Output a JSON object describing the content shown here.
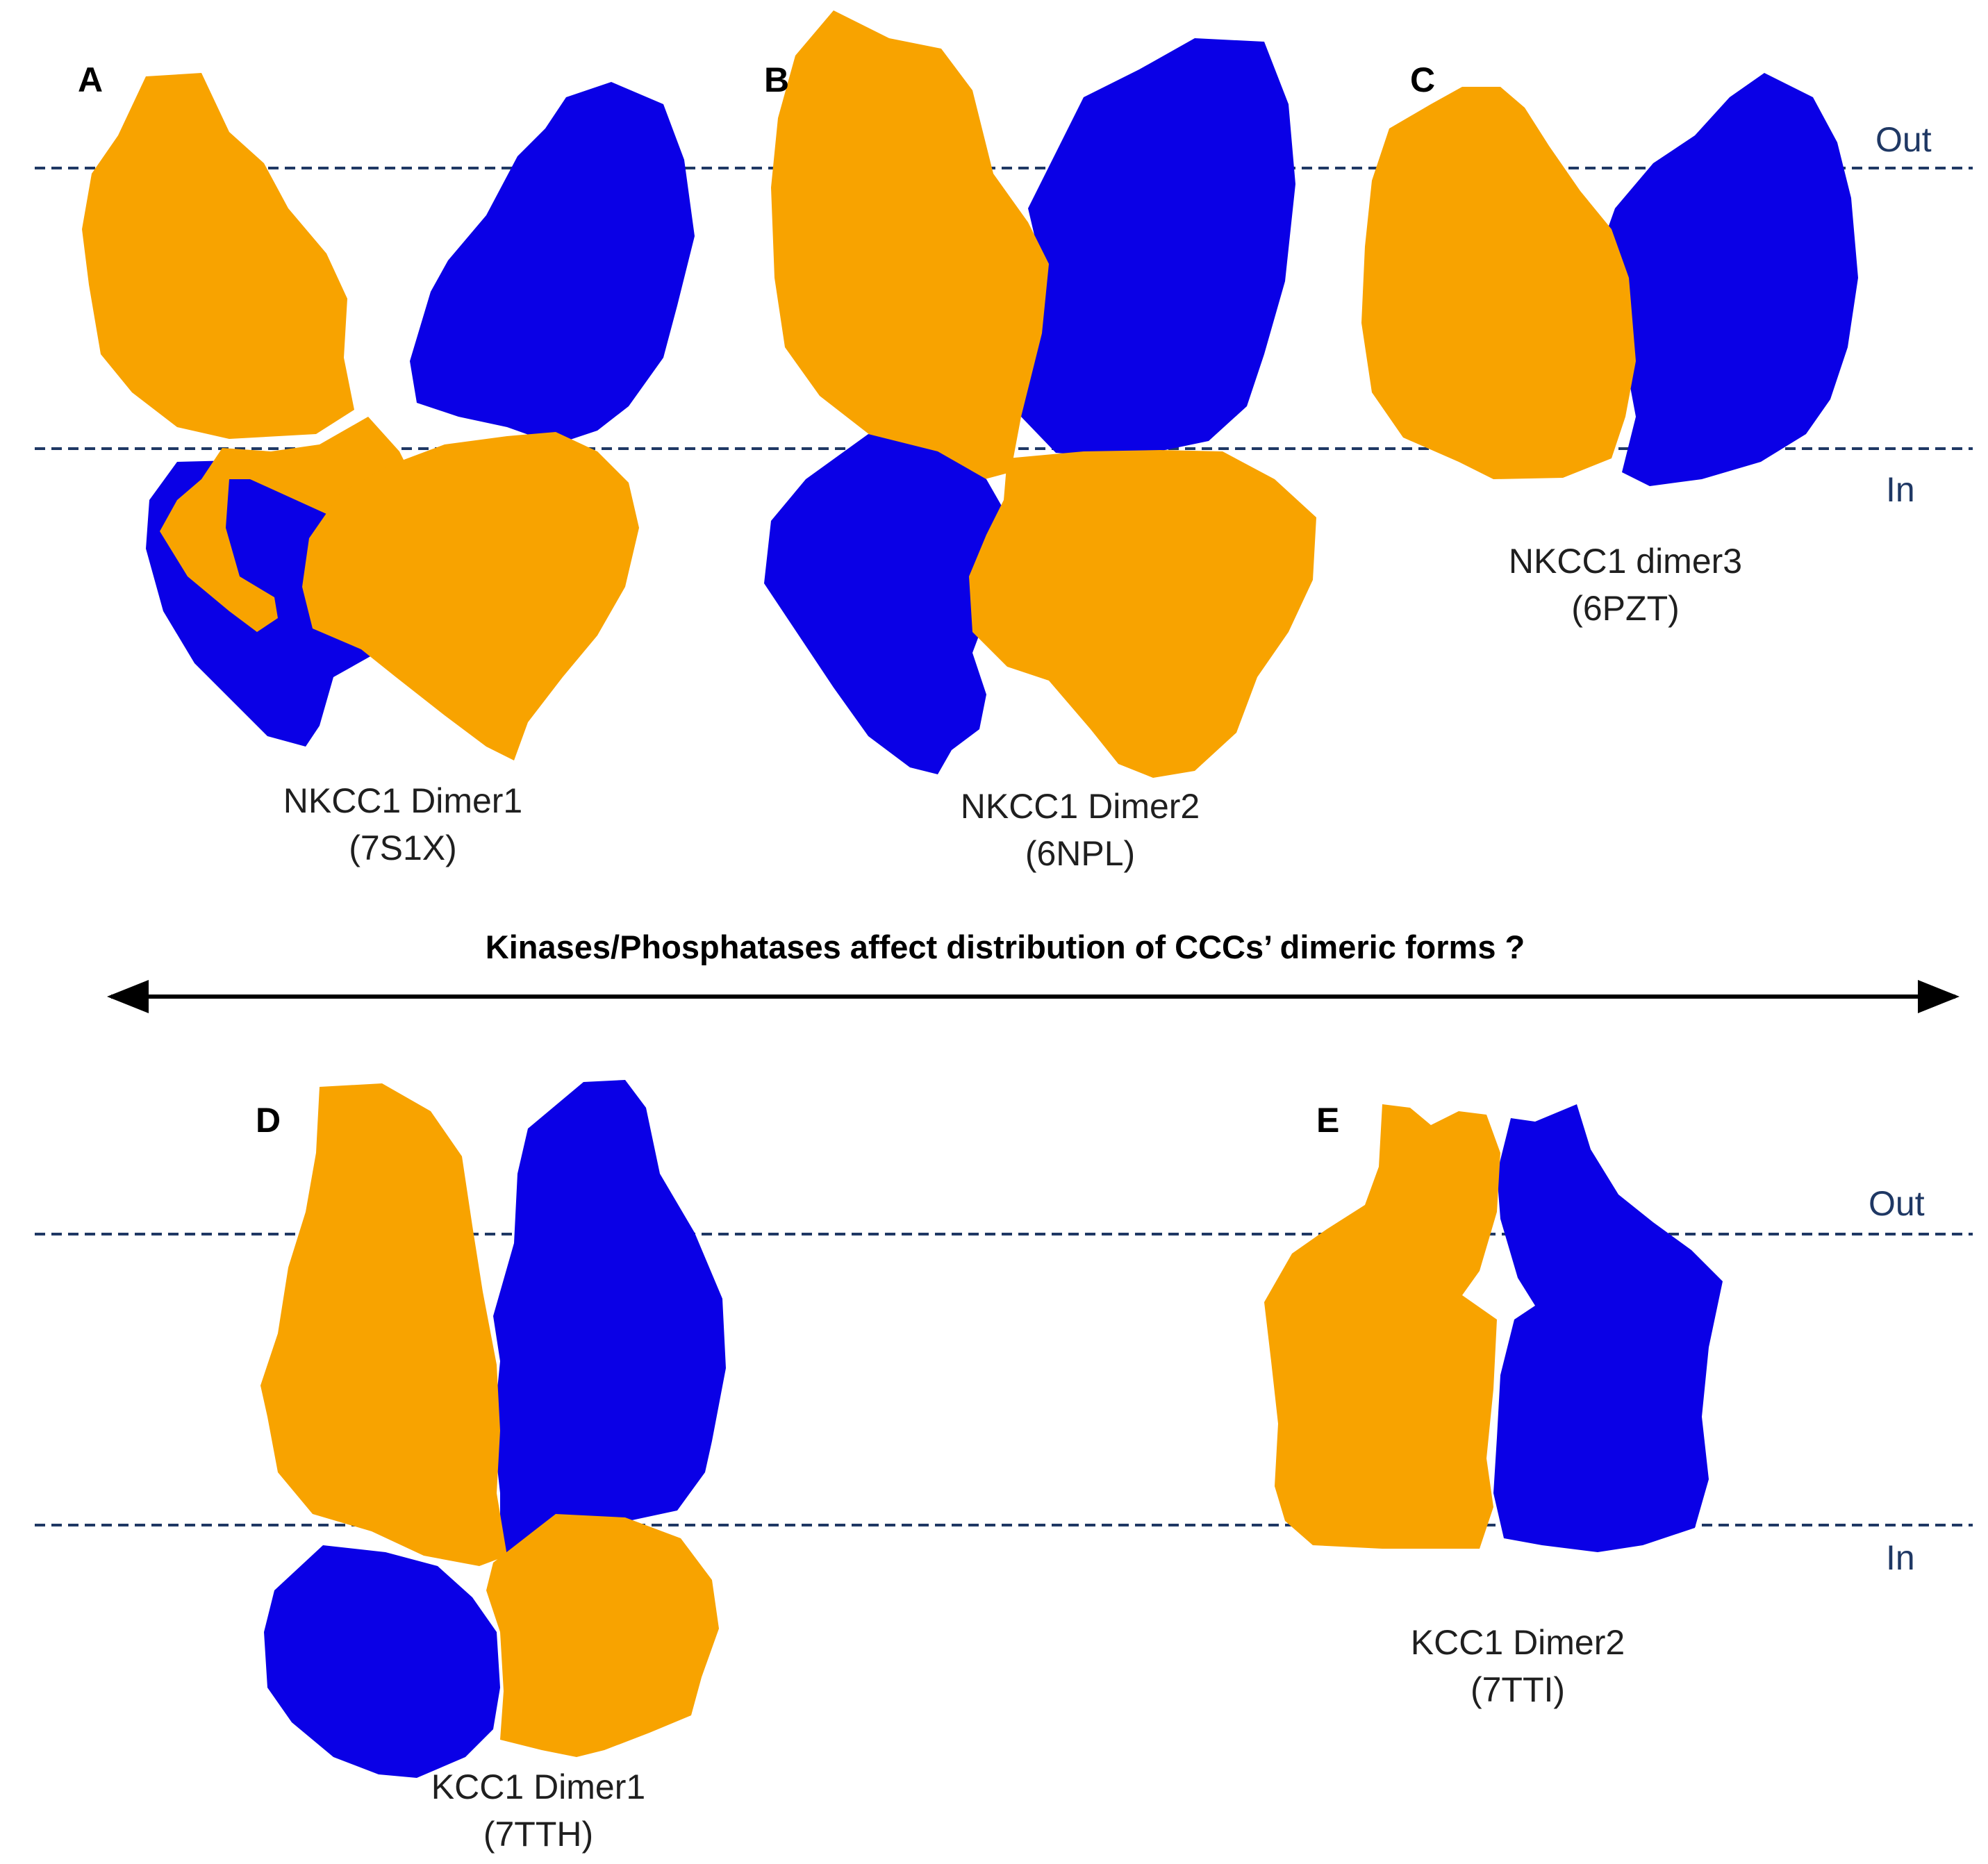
{
  "colors": {
    "monomer_a": "#F8A300",
    "monomer_b": "#0A00E6",
    "membrane_line": "#1F3864",
    "side_label": "#1F3864",
    "arrow": "#000000"
  },
  "headline": "Kinases/Phosphatases affect distribution of CCCs’ dimeric forms ?",
  "membrane_labels": {
    "top_row": {
      "out": "Out",
      "in": "In"
    },
    "bottom_row": {
      "out": "Out",
      "in": "In"
    }
  },
  "panels": [
    {
      "letter": "A",
      "name": "NKCC1 Dimer1",
      "pdb": "(7S1X)"
    },
    {
      "letter": "B",
      "name": "NKCC1 Dimer2",
      "pdb": "(6NPL)"
    },
    {
      "letter": "C",
      "name": "NKCC1 dimer3",
      "pdb": "(6PZT)"
    },
    {
      "letter": "D",
      "name": "KCC1 Dimer1",
      "pdb": "(7TTH)"
    },
    {
      "letter": "E",
      "name": "KCC1 Dimer2",
      "pdb": "(7TTI)"
    }
  ],
  "arrow_icon": "double-headed-arrow-icon"
}
